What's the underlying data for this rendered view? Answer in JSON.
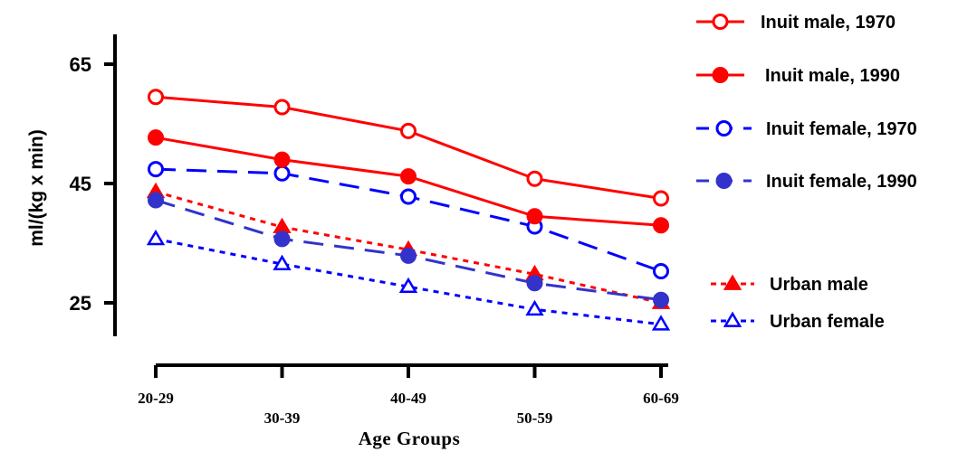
{
  "chart_data": {
    "type": "line",
    "xlabel": "Age Groups",
    "ylabel": "ml/(kg x min)",
    "categories": [
      "20-29",
      "30-39",
      "40-49",
      "50-59",
      "60-69"
    ],
    "ylim": [
      19,
      68
    ],
    "yticks": [
      25,
      45,
      65
    ],
    "grid": false,
    "legend_position": "right",
    "series": [
      {
        "name": "Inuit male, 1970",
        "values": [
          59.5,
          57.8,
          53.8,
          45.8,
          42.5
        ],
        "color": "#ff0000",
        "dash": "solid",
        "marker": "circle",
        "filled": false
      },
      {
        "name": "Inuit male, 1990",
        "values": [
          52.7,
          49.0,
          46.2,
          39.5,
          38.0
        ],
        "color": "#ff0000",
        "dash": "solid",
        "marker": "circle",
        "filled": true
      },
      {
        "name": "Inuit female, 1970",
        "values": [
          47.4,
          46.7,
          42.8,
          37.8,
          30.3
        ],
        "color": "#0000ff",
        "dash": "long-dash",
        "marker": "circle",
        "filled": false
      },
      {
        "name": "Inuit female, 1990",
        "values": [
          42.2,
          35.7,
          32.9,
          28.3,
          25.5
        ],
        "color": "#3333cc",
        "dash": "long-dash",
        "marker": "circle",
        "filled": true
      },
      {
        "name": "Urban male",
        "values": [
          43.6,
          37.7,
          33.9,
          29.8,
          25.0
        ],
        "color": "#ff0000",
        "dash": "dotted",
        "marker": "triangle",
        "filled": true
      },
      {
        "name": "Urban female",
        "values": [
          35.7,
          31.5,
          27.7,
          23.9,
          21.4
        ],
        "color": "#0000ff",
        "dash": "dotted",
        "marker": "triangle",
        "filled": false
      }
    ]
  }
}
